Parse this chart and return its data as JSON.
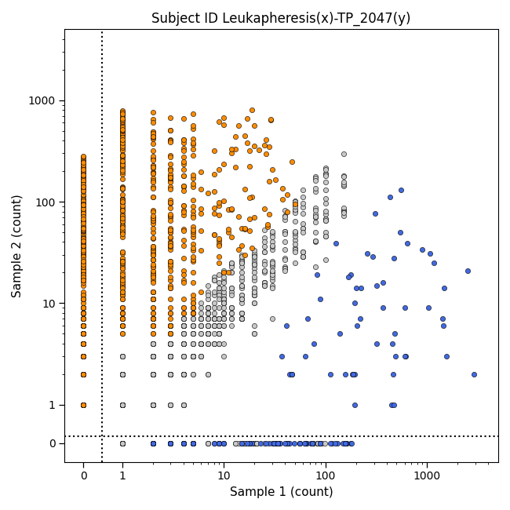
{
  "title": "Subject ID Leukapheresis(x)-TP_2047(y)",
  "xlabel": "Sample 1 (count)",
  "ylabel": "Sample 2 (count)",
  "background_color": "#ffffff",
  "title_fontsize": 12,
  "label_fontsize": 11,
  "tick_fontsize": 10,
  "orange_color": "#FF8C00",
  "blue_color": "#4169E1",
  "gray_color": "#C8C8C8",
  "black_edge": "#000000",
  "marker_size": 4.5,
  "marker_edge_width": 0.4,
  "seed": 42,
  "linthresh": 0.9,
  "linscale": 0.3,
  "xlim_lo": -0.5,
  "xlim_hi": 5000,
  "ylim_lo": -0.5,
  "ylim_hi": 5000,
  "vline_x": 0.5,
  "hline_y": 0.18,
  "major_ticks": [
    0,
    1,
    10,
    100,
    1000
  ],
  "tick_labels": [
    "0",
    "1",
    "10",
    "100",
    "1000"
  ],
  "minor_ticks": [
    2,
    3,
    4,
    5,
    6,
    7,
    8,
    9,
    20,
    30,
    40,
    50,
    60,
    70,
    80,
    90,
    200,
    300,
    400,
    500,
    600,
    700,
    800,
    900,
    2000,
    3000,
    4000
  ]
}
